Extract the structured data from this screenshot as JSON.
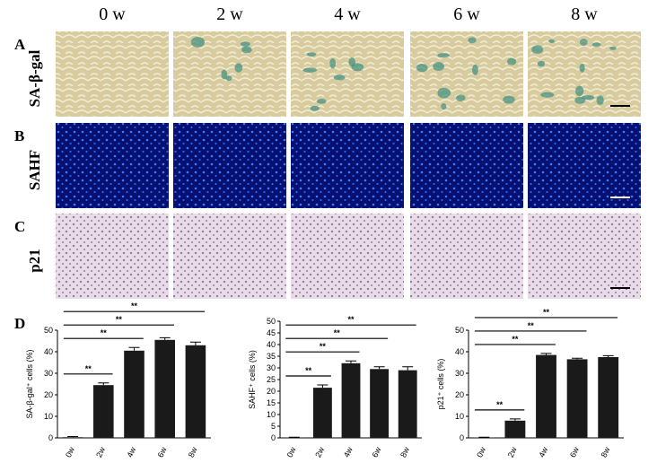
{
  "columns": [
    "0 w",
    "2 w",
    "4 w",
    "6 w",
    "8 w"
  ],
  "rows": [
    {
      "letter": "A",
      "label": "SA-β-gal"
    },
    {
      "letter": "B",
      "label": "SAHF"
    },
    {
      "letter": "C",
      "label": "p21"
    }
  ],
  "panel_d_letter": "D",
  "chart_data": [
    {
      "type": "bar",
      "y_label": "SA-β-gal⁺ cells (%)",
      "categories": [
        "0w",
        "2w",
        "4w",
        "6w",
        "8w"
      ],
      "values": [
        0.3,
        24.5,
        40.5,
        45.5,
        43
      ],
      "errors": [
        0.3,
        1,
        1.5,
        1,
        1.5
      ],
      "color": "#1a1a1a",
      "ylim": [
        0,
        50
      ],
      "yticks": [
        0,
        10,
        20,
        30,
        40,
        50
      ],
      "significance": [
        {
          "groups": [
            "0w",
            "2w"
          ],
          "label": "**"
        },
        {
          "groups": [
            "0w",
            "4w"
          ],
          "label": "**"
        },
        {
          "groups": [
            "0w",
            "6w"
          ],
          "label": "**"
        },
        {
          "groups": [
            "0w",
            "8w"
          ],
          "label": "**"
        }
      ]
    },
    {
      "type": "bar",
      "y_label": "SAHF⁺ cells (%)",
      "categories": [
        "0w",
        "2w",
        "4w",
        "6w",
        "8w"
      ],
      "values": [
        0.2,
        21.5,
        32,
        29.5,
        29
      ],
      "errors": [
        0.1,
        1.2,
        1,
        1,
        1.5
      ],
      "color": "#1a1a1a",
      "ylim": [
        0,
        50
      ],
      "yticks": [
        0,
        5,
        10,
        15,
        20,
        25,
        30,
        35,
        40,
        45,
        50
      ],
      "significance": [
        {
          "groups": [
            "0w",
            "2w"
          ],
          "label": "**"
        },
        {
          "groups": [
            "0w",
            "4w"
          ],
          "label": "**"
        },
        {
          "groups": [
            "0w",
            "6w"
          ],
          "label": "**"
        },
        {
          "groups": [
            "0w",
            "8w"
          ],
          "label": "**"
        }
      ]
    },
    {
      "type": "bar",
      "y_label": "p21⁺ cells (%)",
      "categories": [
        "0w",
        "2w",
        "4w",
        "6w",
        "8w"
      ],
      "values": [
        0.2,
        8,
        38.5,
        36.5,
        37.5
      ],
      "errors": [
        0.1,
        0.8,
        0.7,
        0.5,
        0.7
      ],
      "color": "#1a1a1a",
      "ylim": [
        0,
        50
      ],
      "yticks": [
        0,
        10,
        20,
        30,
        40,
        50
      ],
      "significance": [
        {
          "groups": [
            "0w",
            "2w"
          ],
          "label": "**"
        },
        {
          "groups": [
            "0w",
            "4w"
          ],
          "label": "**"
        },
        {
          "groups": [
            "0w",
            "6w"
          ],
          "label": "**"
        },
        {
          "groups": [
            "0w",
            "8w"
          ],
          "label": "**"
        }
      ]
    }
  ]
}
